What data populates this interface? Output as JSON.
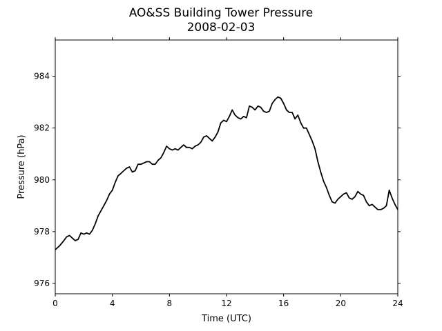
{
  "chart_data": {
    "type": "line",
    "title": "AO&SS Building Tower Pressure",
    "subtitle": "2008-02-03",
    "xlabel": "Time (UTC)",
    "ylabel": "Pressure (hPa)",
    "xlim": [
      0,
      24
    ],
    "ylim": [
      975.6,
      985.4
    ],
    "xticks": [
      0,
      4,
      8,
      12,
      16,
      20,
      24
    ],
    "yticks": [
      976,
      978,
      980,
      982,
      984
    ],
    "grid": false,
    "series": [
      {
        "color": "#000000",
        "x": [
          0.0,
          0.3,
          0.6,
          0.8,
          1.0,
          1.2,
          1.4,
          1.6,
          1.8,
          2.0,
          2.2,
          2.4,
          2.6,
          2.8,
          3.0,
          3.2,
          3.4,
          3.6,
          3.8,
          4.0,
          4.2,
          4.4,
          4.6,
          4.8,
          5.0,
          5.2,
          5.4,
          5.6,
          5.8,
          6.0,
          6.2,
          6.4,
          6.6,
          6.8,
          7.0,
          7.2,
          7.4,
          7.6,
          7.8,
          8.0,
          8.2,
          8.4,
          8.6,
          8.8,
          9.0,
          9.2,
          9.4,
          9.6,
          9.8,
          10.0,
          10.2,
          10.4,
          10.6,
          10.8,
          11.0,
          11.2,
          11.4,
          11.6,
          11.8,
          12.0,
          12.2,
          12.4,
          12.6,
          12.8,
          13.0,
          13.2,
          13.4,
          13.6,
          13.8,
          14.0,
          14.2,
          14.4,
          14.6,
          14.8,
          15.0,
          15.2,
          15.4,
          15.6,
          15.8,
          16.0,
          16.2,
          16.4,
          16.6,
          16.8,
          17.0,
          17.2,
          17.4,
          17.6,
          17.8,
          18.0,
          18.2,
          18.4,
          18.6,
          18.8,
          19.0,
          19.2,
          19.4,
          19.6,
          19.8,
          20.0,
          20.2,
          20.4,
          20.6,
          20.8,
          21.0,
          21.2,
          21.4,
          21.6,
          21.8,
          22.0,
          22.2,
          22.4,
          22.6,
          22.8,
          23.0,
          23.2,
          23.4,
          23.6,
          23.8,
          24.0
        ],
        "values": [
          977.3,
          977.45,
          977.65,
          977.8,
          977.85,
          977.75,
          977.65,
          977.7,
          977.95,
          977.9,
          977.95,
          977.9,
          978.05,
          978.3,
          978.6,
          978.8,
          979.0,
          979.2,
          979.45,
          979.6,
          979.9,
          980.15,
          980.25,
          980.35,
          980.45,
          980.5,
          980.3,
          980.35,
          980.6,
          980.6,
          980.65,
          980.7,
          980.7,
          980.6,
          980.6,
          980.75,
          980.85,
          981.05,
          981.3,
          981.2,
          981.15,
          981.2,
          981.15,
          981.25,
          981.35,
          981.25,
          981.25,
          981.2,
          981.3,
          981.35,
          981.45,
          981.65,
          981.7,
          981.6,
          981.5,
          981.65,
          981.85,
          982.2,
          982.3,
          982.25,
          982.45,
          982.7,
          982.5,
          982.4,
          982.35,
          982.45,
          982.4,
          982.85,
          982.8,
          982.7,
          982.85,
          982.8,
          982.65,
          982.6,
          982.65,
          982.95,
          983.1,
          983.2,
          983.15,
          982.95,
          982.7,
          982.6,
          982.6,
          982.35,
          982.5,
          982.2,
          982.0,
          982.0,
          981.75,
          981.5,
          981.2,
          980.7,
          980.3,
          979.95,
          979.7,
          979.4,
          979.15,
          979.1,
          979.25,
          979.35,
          979.45,
          979.5,
          979.3,
          979.25,
          979.35,
          979.55,
          979.45,
          979.4,
          979.15,
          979.0,
          979.05,
          978.95,
          978.85,
          978.85,
          978.9,
          979.0,
          979.6,
          979.3,
          979.05,
          978.85
        ],
        "values_note": ""
      }
    ]
  }
}
